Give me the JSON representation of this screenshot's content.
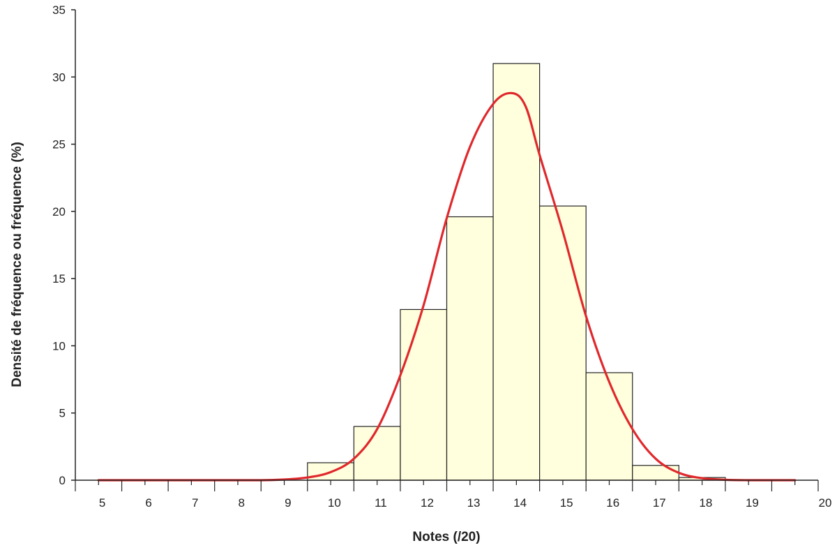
{
  "chart_data": {
    "type": "bar",
    "subtype": "histogram-with-density-curve",
    "title": "",
    "xlabel": "Notes (/20)",
    "ylabel": "Densité de fréquence ou fréquence (%)",
    "xlim": [
      4,
      20
    ],
    "ylim": [
      0,
      35
    ],
    "x_ticks": [
      5,
      6,
      7,
      8,
      9,
      10,
      11,
      12,
      13,
      14,
      15,
      16,
      17,
      18,
      19,
      20
    ],
    "y_ticks": [
      0,
      5,
      10,
      15,
      20,
      25,
      30,
      35
    ],
    "bins": [
      {
        "from": 9,
        "to": 10,
        "value": 1.3
      },
      {
        "from": 10,
        "to": 11,
        "value": 4.0
      },
      {
        "from": 11,
        "to": 12,
        "value": 12.7
      },
      {
        "from": 12,
        "to": 13,
        "value": 19.6
      },
      {
        "from": 13,
        "to": 14,
        "value": 31.0
      },
      {
        "from": 14,
        "to": 15,
        "value": 20.4
      },
      {
        "from": 15,
        "to": 16,
        "value": 8.0
      },
      {
        "from": 16,
        "to": 17,
        "value": 1.1
      },
      {
        "from": 17,
        "to": 18,
        "value": 0.2
      }
    ],
    "curve": {
      "x": [
        4.5,
        5,
        6,
        7,
        8,
        8.5,
        9,
        9.5,
        10,
        10.5,
        11,
        11.5,
        12,
        12.5,
        13,
        13.4,
        13.7,
        14,
        14.5,
        15,
        15.5,
        16,
        16.5,
        17,
        17.5,
        18,
        18.5,
        19,
        19.5
      ],
      "y": [
        0,
        0,
        0,
        0,
        0,
        0.05,
        0.2,
        0.6,
        1.6,
        3.8,
        7.8,
        13.0,
        19.5,
        24.8,
        28.0,
        28.8,
        27.8,
        24.2,
        18.5,
        12.2,
        7.3,
        3.8,
        1.6,
        0.55,
        0.15,
        0.03,
        0,
        0,
        0
      ]
    },
    "bar_fill": "#ffffdd",
    "bar_stroke": "#222222",
    "curve_color": "#e0282c",
    "grid": false,
    "legend": "none"
  }
}
